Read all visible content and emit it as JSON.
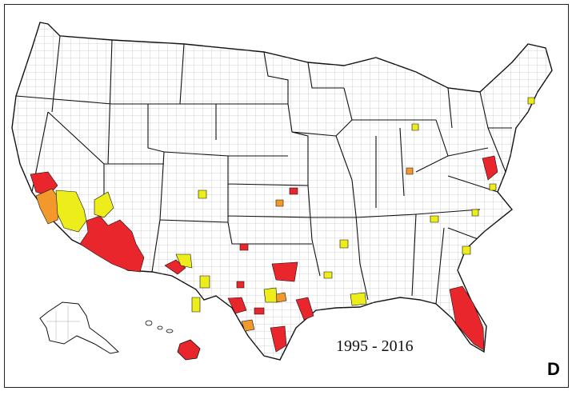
{
  "map": {
    "period_label": "1995 - 2016",
    "panel_letter": "D"
  },
  "colors": {
    "high": "#e8262c",
    "medium": "#f3982a",
    "low": "#eded1c",
    "outline": "#111111",
    "county_line": "#9a9a9a",
    "background": "#ffffff"
  },
  "icons": {
    "us_outline": "us-outline-icon",
    "alaska": "alaska-icon",
    "hawaii": "hawaii-icon"
  }
}
